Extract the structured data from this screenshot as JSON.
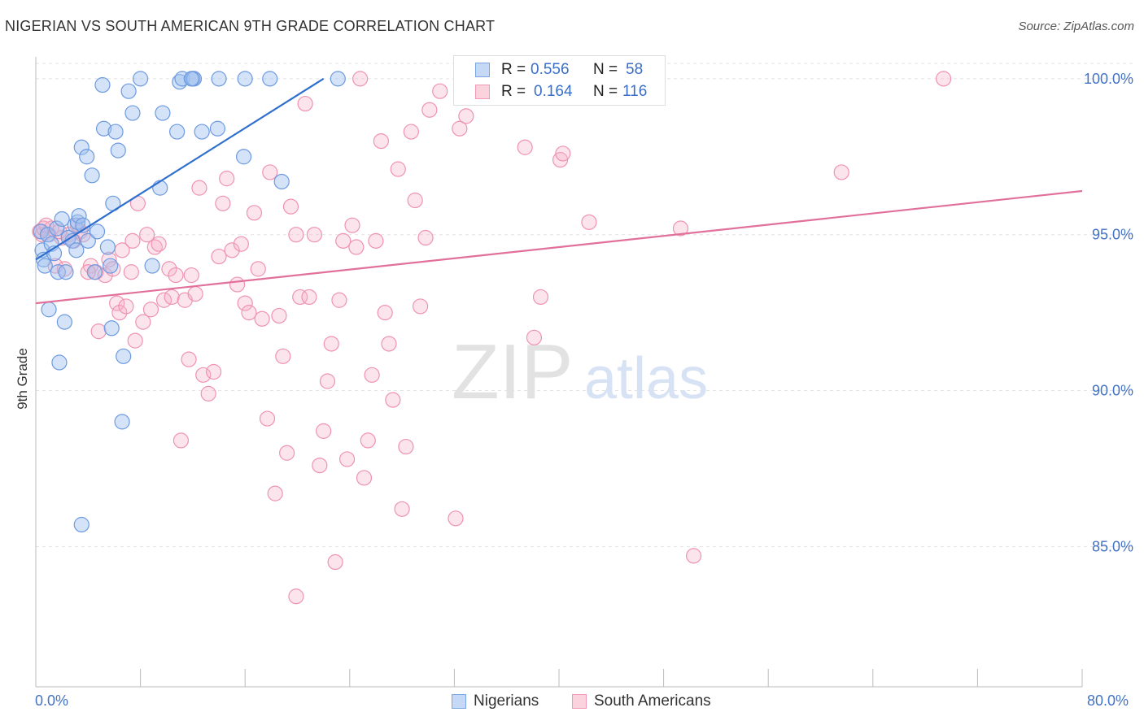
{
  "header": {
    "title": "NIGERIAN VS SOUTH AMERICAN 9TH GRADE CORRELATION CHART",
    "source": "Source: ZipAtlas.com"
  },
  "watermark": {
    "zip": "ZIP",
    "atlas": "atlas"
  },
  "legend": {
    "r_label": "R =",
    "n_label": "N =",
    "rows": [
      {
        "r": "0.556",
        "n": "58",
        "color": "#7aa6e8"
      },
      {
        "r": "0.164",
        "n": "116",
        "color": "#f29ab5"
      }
    ]
  },
  "bottom_legend": [
    "Nigerians",
    "South Americans"
  ],
  "chart_data": {
    "type": "scatter",
    "title": "NIGERIAN VS SOUTH AMERICAN 9TH GRADE CORRELATION CHART",
    "xlabel": "",
    "ylabel": "9th Grade",
    "xlim": [
      0,
      80
    ],
    "ylim": [
      80.5,
      100.7
    ],
    "x_tick_labels": [
      "0.0%",
      "80.0%"
    ],
    "y_ticks": [
      85,
      90,
      95,
      100
    ],
    "y_tick_labels": [
      "85.0%",
      "90.0%",
      "95.0%",
      "100.0%"
    ],
    "grid": true,
    "legend_position": "top-center",
    "series": [
      {
        "name": "Nigerians",
        "color": "#7aa6e8",
        "trend": {
          "x": [
            0,
            22.0
          ],
          "y": [
            94.2,
            100.0
          ]
        },
        "points": [
          [
            0.4,
            95.1
          ],
          [
            0.5,
            94.5
          ],
          [
            0.6,
            94.2
          ],
          [
            0.7,
            94.0
          ],
          [
            0.9,
            95.0
          ],
          [
            1.0,
            92.6
          ],
          [
            1.2,
            94.7
          ],
          [
            1.4,
            94.4
          ],
          [
            1.6,
            95.2
          ],
          [
            1.7,
            93.8
          ],
          [
            1.8,
            90.9
          ],
          [
            2.0,
            95.5
          ],
          [
            2.2,
            92.2
          ],
          [
            2.3,
            93.8
          ],
          [
            2.5,
            94.9
          ],
          [
            2.8,
            94.8
          ],
          [
            3.0,
            95.3
          ],
          [
            3.1,
            94.5
          ],
          [
            3.2,
            95.4
          ],
          [
            3.3,
            95.6
          ],
          [
            3.5,
            97.8
          ],
          [
            3.6,
            95.3
          ],
          [
            3.9,
            97.5
          ],
          [
            4.0,
            94.8
          ],
          [
            4.3,
            96.9
          ],
          [
            4.5,
            93.8
          ],
          [
            4.7,
            95.1
          ],
          [
            5.1,
            99.8
          ],
          [
            5.2,
            98.4
          ],
          [
            5.5,
            94.6
          ],
          [
            5.7,
            94.0
          ],
          [
            5.8,
            92.0
          ],
          [
            5.9,
            96.0
          ],
          [
            6.1,
            98.3
          ],
          [
            6.3,
            97.7
          ],
          [
            6.6,
            89.0
          ],
          [
            6.7,
            91.1
          ],
          [
            7.1,
            99.6
          ],
          [
            7.4,
            98.9
          ],
          [
            8.0,
            100.0
          ],
          [
            8.9,
            94.0
          ],
          [
            9.5,
            96.5
          ],
          [
            9.7,
            98.9
          ],
          [
            10.8,
            98.3
          ],
          [
            11.0,
            99.9
          ],
          [
            11.2,
            100.0
          ],
          [
            12.0,
            100.0
          ],
          [
            12.1,
            100.0
          ],
          [
            13.9,
            98.4
          ],
          [
            14.0,
            100.0
          ],
          [
            15.9,
            97.5
          ],
          [
            16.0,
            100.0
          ],
          [
            17.9,
            100.0
          ],
          [
            18.8,
            96.7
          ],
          [
            23.1,
            100.0
          ],
          [
            12.7,
            98.3
          ],
          [
            11.9,
            100.0
          ],
          [
            3.5,
            85.7
          ]
        ]
      },
      {
        "name": "South Americans",
        "color": "#f29ab5",
        "trend": {
          "x": [
            0,
            80
          ],
          "y": [
            92.8,
            96.4
          ]
        },
        "points": [
          [
            0.3,
            95.1
          ],
          [
            0.5,
            95.0
          ],
          [
            0.6,
            95.2
          ],
          [
            1.0,
            95.0
          ],
          [
            1.2,
            95.2
          ],
          [
            1.5,
            94.0
          ],
          [
            2.0,
            94.9
          ],
          [
            2.2,
            93.9
          ],
          [
            2.5,
            95.0
          ],
          [
            2.9,
            94.8
          ],
          [
            3.2,
            95.3
          ],
          [
            3.4,
            95.1
          ],
          [
            3.6,
            95.0
          ],
          [
            4.2,
            94.0
          ],
          [
            4.6,
            93.8
          ],
          [
            4.8,
            91.9
          ],
          [
            5.3,
            93.7
          ],
          [
            5.6,
            94.2
          ],
          [
            5.9,
            93.9
          ],
          [
            6.2,
            92.8
          ],
          [
            6.4,
            92.5
          ],
          [
            6.6,
            94.5
          ],
          [
            6.9,
            92.7
          ],
          [
            7.3,
            93.8
          ],
          [
            7.6,
            91.6
          ],
          [
            7.8,
            96.0
          ],
          [
            8.2,
            92.2
          ],
          [
            8.5,
            95.0
          ],
          [
            8.8,
            92.6
          ],
          [
            9.1,
            94.6
          ],
          [
            9.4,
            94.7
          ],
          [
            9.8,
            92.9
          ],
          [
            10.2,
            93.9
          ],
          [
            10.4,
            93.0
          ],
          [
            10.7,
            93.7
          ],
          [
            11.1,
            88.4
          ],
          [
            11.4,
            92.9
          ],
          [
            11.7,
            91.0
          ],
          [
            11.9,
            93.7
          ],
          [
            12.2,
            93.1
          ],
          [
            12.5,
            96.5
          ],
          [
            12.8,
            90.5
          ],
          [
            13.2,
            89.9
          ],
          [
            13.6,
            90.6
          ],
          [
            14.0,
            94.3
          ],
          [
            14.3,
            96.0
          ],
          [
            14.6,
            96.8
          ],
          [
            15.0,
            94.5
          ],
          [
            15.4,
            93.4
          ],
          [
            15.7,
            94.7
          ],
          [
            16.0,
            92.8
          ],
          [
            16.3,
            92.5
          ],
          [
            16.7,
            95.7
          ],
          [
            17.0,
            93.9
          ],
          [
            17.3,
            92.3
          ],
          [
            17.7,
            89.1
          ],
          [
            17.9,
            97.0
          ],
          [
            18.3,
            86.7
          ],
          [
            18.6,
            92.4
          ],
          [
            18.9,
            91.1
          ],
          [
            19.2,
            88.0
          ],
          [
            19.5,
            95.9
          ],
          [
            19.9,
            95.0
          ],
          [
            20.2,
            93.0
          ],
          [
            20.6,
            99.2
          ],
          [
            20.9,
            93.0
          ],
          [
            21.3,
            95.0
          ],
          [
            21.7,
            87.6
          ],
          [
            22.0,
            88.7
          ],
          [
            22.3,
            90.3
          ],
          [
            22.6,
            91.5
          ],
          [
            22.9,
            84.5
          ],
          [
            23.2,
            92.9
          ],
          [
            23.5,
            94.8
          ],
          [
            23.8,
            87.8
          ],
          [
            24.2,
            95.3
          ],
          [
            24.5,
            94.6
          ],
          [
            24.8,
            100.0
          ],
          [
            25.1,
            87.2
          ],
          [
            25.4,
            88.4
          ],
          [
            25.7,
            90.5
          ],
          [
            26.0,
            94.8
          ],
          [
            26.4,
            98.0
          ],
          [
            26.7,
            92.5
          ],
          [
            27.0,
            91.5
          ],
          [
            27.3,
            89.7
          ],
          [
            27.7,
            97.1
          ],
          [
            28.0,
            86.2
          ],
          [
            28.3,
            88.2
          ],
          [
            28.7,
            98.3
          ],
          [
            29.0,
            96.1
          ],
          [
            29.4,
            92.7
          ],
          [
            29.8,
            94.9
          ],
          [
            30.1,
            99.0
          ],
          [
            30.9,
            99.6
          ],
          [
            32.1,
            85.9
          ],
          [
            32.4,
            98.4
          ],
          [
            32.9,
            98.8
          ],
          [
            33.5,
            100.0
          ],
          [
            36.7,
            100.0
          ],
          [
            37.4,
            97.8
          ],
          [
            38.1,
            91.7
          ],
          [
            38.6,
            93.0
          ],
          [
            40.1,
            97.4
          ],
          [
            40.3,
            97.6
          ],
          [
            42.3,
            95.4
          ],
          [
            49.3,
            95.2
          ],
          [
            50.3,
            84.7
          ],
          [
            61.6,
            97.0
          ],
          [
            69.4,
            100.0
          ],
          [
            19.9,
            83.4
          ],
          [
            7.4,
            94.8
          ],
          [
            36.2,
            100.0
          ],
          [
            0.8,
            95.3
          ],
          [
            1.8,
            95.1
          ],
          [
            4.0,
            93.8
          ]
        ]
      }
    ]
  }
}
